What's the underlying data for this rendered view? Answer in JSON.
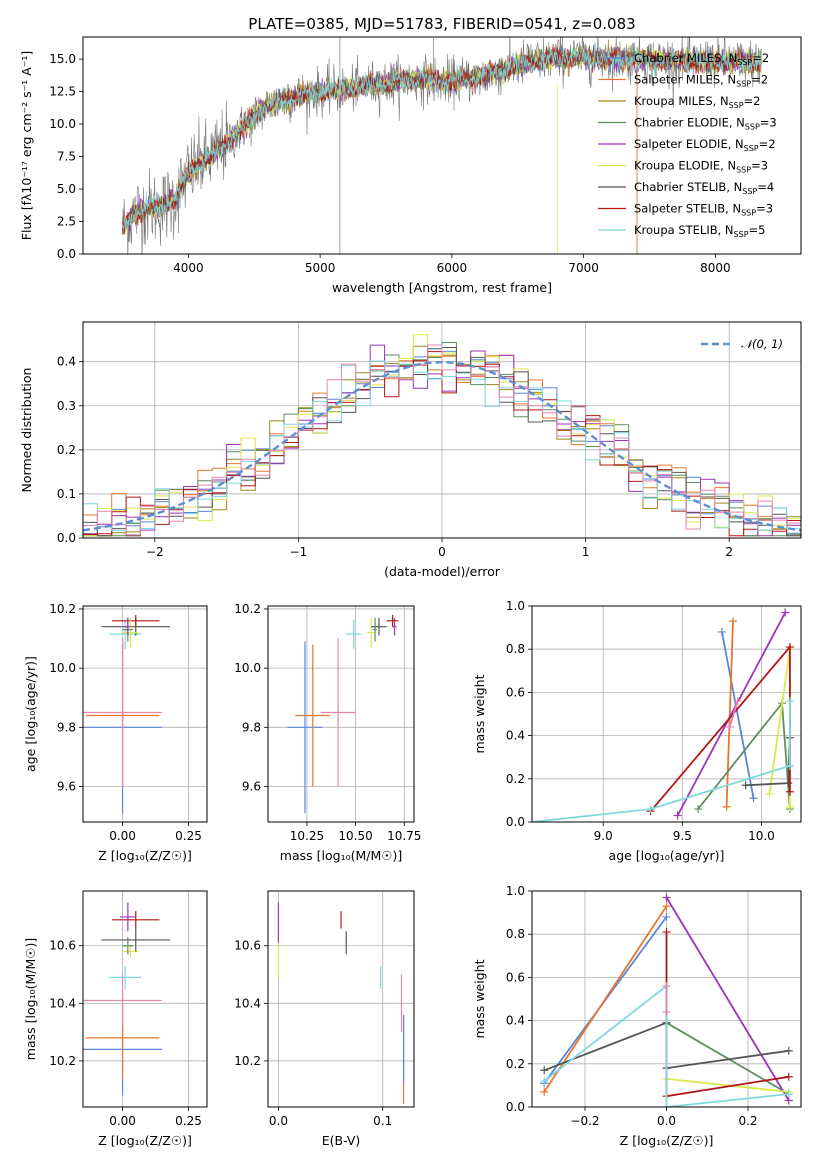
{
  "colors": {
    "Chabrier MILES": "#5b86d6",
    "Salpeter MILES": "#e8772e",
    "Kroupa MILES": "#9c8a1a",
    "Chabrier ELODIE": "#5f8c5f",
    "Salpeter ELODIE": "#9a35b8",
    "Kroupa ELODIE": "#dde84a",
    "Chabrier STELIB": "#555555",
    "Salpeter STELIB": "#b01818",
    "Kroupa STELIB": "#7fd8dc",
    "pink": "#e585b0",
    "gauss": "#5b8fd6"
  },
  "chart_data": [
    {
      "id": "spectrum",
      "type": "line",
      "title": "PLATE=0385, MJD=51783, FIBERID=0541, z=0.083",
      "xlabel": "wavelength [Angstrom, rest frame]",
      "ylabel": "Flux [fλ10⁻¹⁷ erg cm⁻² s⁻¹ A⁻¹]",
      "xlim": [
        3200,
        8650
      ],
      "ylim": [
        0,
        16.7
      ],
      "xticks": [
        "4000",
        "5000",
        "6000",
        "7000",
        "8000"
      ],
      "yticks": [
        "0.0",
        "2.5",
        "5.0",
        "7.5",
        "10.0",
        "12.5",
        "15.0"
      ],
      "legend_loc": "right",
      "legend": [
        {
          "name": "Chabrier MILES",
          "nssp": "2"
        },
        {
          "name": "Salpeter MILES",
          "nssp": "2"
        },
        {
          "name": "Kroupa MILES",
          "nssp": "2"
        },
        {
          "name": "Chabrier ELODIE",
          "nssp": "3"
        },
        {
          "name": "Salpeter ELODIE",
          "nssp": "2"
        },
        {
          "name": "Kroupa ELODIE",
          "nssp": "3"
        },
        {
          "name": "Chabrier STELIB",
          "nssp": "4"
        },
        {
          "name": "Salpeter STELIB",
          "nssp": "3"
        },
        {
          "name": "Kroupa STELIB",
          "nssp": "5"
        }
      ],
      "continuum": [
        [
          3500,
          2.0
        ],
        [
          3600,
          3.2
        ],
        [
          3700,
          3.6
        ],
        [
          3800,
          3.6
        ],
        [
          3900,
          4.2
        ],
        [
          4000,
          6.3
        ],
        [
          4100,
          7.0
        ],
        [
          4200,
          7.7
        ],
        [
          4300,
          8.6
        ],
        [
          4400,
          9.6
        ],
        [
          4500,
          10.6
        ],
        [
          4600,
          11.4
        ],
        [
          4700,
          11.8
        ],
        [
          4800,
          12.1
        ],
        [
          4900,
          12.3
        ],
        [
          5000,
          12.5
        ],
        [
          5200,
          12.7
        ],
        [
          5400,
          13.0
        ],
        [
          5600,
          13.3
        ],
        [
          5800,
          13.4
        ],
        [
          6000,
          13.3
        ],
        [
          6200,
          13.6
        ],
        [
          6400,
          14.2
        ],
        [
          6600,
          14.8
        ],
        [
          6800,
          15.1
        ],
        [
          7000,
          15.1
        ],
        [
          7200,
          15.0
        ],
        [
          7400,
          15.0
        ],
        [
          7600,
          14.9
        ],
        [
          8000,
          14.8
        ],
        [
          8350,
          14.7
        ]
      ]
    },
    {
      "id": "residuals",
      "type": "step",
      "xlabel": "(data-model)/error",
      "ylabel": "Normed distribution",
      "xlim": [
        -2.5,
        2.5
      ],
      "ylim": [
        0,
        0.49
      ],
      "xticks": [
        "−2",
        "−1",
        "0",
        "1",
        "2"
      ],
      "yticks": [
        "0.0",
        "0.1",
        "0.2",
        "0.3",
        "0.4"
      ],
      "grid": true,
      "legend_loc": "top-right",
      "legend": [
        {
          "name": "𝒩(0, 1)"
        }
      ],
      "bin_width": 0.1
    },
    {
      "id": "age-vs-Z",
      "type": "errorbar",
      "xlabel": "Z [log₁₀(Z/Z☉)]",
      "ylabel": "age  [log₁₀(age/yr)]",
      "xlim": [
        -0.15,
        0.32
      ],
      "ylim": [
        9.48,
        10.21
      ],
      "xticks": [
        "0.00",
        "0.25"
      ],
      "yticks": [
        "9.6",
        "9.8",
        "10.0",
        "10.2"
      ],
      "grid": true,
      "points": [
        {
          "c": "Chabrier MILES",
          "x": 0.0,
          "y": 9.8,
          "xe": 0.15,
          "ye": 0.29
        },
        {
          "c": "Salpeter MILES",
          "x": 0.0,
          "y": 9.84,
          "xe": 0.14,
          "ye": 0.24
        },
        {
          "c": "pink",
          "x": 0.0,
          "y": 9.85,
          "xe": 0.15,
          "ye": 0.25
        },
        {
          "c": "Kroupa STELIB",
          "x": 0.01,
          "y": 10.115,
          "xe": 0.06,
          "ye": 0.05
        },
        {
          "c": "Chabrier STELIB",
          "x": 0.05,
          "y": 10.14,
          "xe": 0.13,
          "ye": 0.03
        },
        {
          "c": "Salpeter STELIB",
          "x": 0.05,
          "y": 10.16,
          "xe": 0.09,
          "ye": 0.02
        },
        {
          "c": "Kroupa ELODIE",
          "x": 0.03,
          "y": 10.12,
          "xe": 0.03,
          "ye": 0.05
        },
        {
          "c": "Chabrier ELODIE",
          "x": 0.02,
          "y": 10.13,
          "xe": 0.02,
          "ye": 0.04
        },
        {
          "c": "Salpeter ELODIE",
          "x": 0.02,
          "y": 10.14,
          "xe": 0.01,
          "ye": 0.03
        }
      ]
    },
    {
      "id": "age-vs-mass",
      "type": "errorbar",
      "xlabel": "mass [log₁₀(M/M☉)]",
      "xlim": [
        10.05,
        10.8
      ],
      "ylim": [
        9.48,
        10.21
      ],
      "xticks": [
        "10.25",
        "10.50",
        "10.75"
      ],
      "yticks": [
        "9.6",
        "9.8",
        "10.0",
        "10.2"
      ],
      "grid": true,
      "points": [
        {
          "c": "Chabrier MILES",
          "x": 10.24,
          "y": 9.8,
          "xe": 0.09,
          "ye": 0.29
        },
        {
          "c": "Salpeter MILES",
          "x": 10.28,
          "y": 9.84,
          "xe": 0.09,
          "ye": 0.24
        },
        {
          "c": "pink",
          "x": 10.41,
          "y": 9.85,
          "xe": 0.09,
          "ye": 0.25
        },
        {
          "c": "Kroupa STELIB",
          "x": 10.49,
          "y": 10.115,
          "xe": 0.04,
          "ye": 0.05
        },
        {
          "c": "Kroupa ELODIE",
          "x": 10.58,
          "y": 10.12,
          "xe": 0.02,
          "ye": 0.05
        },
        {
          "c": "Chabrier STELIB",
          "x": 10.62,
          "y": 10.14,
          "xe": 0.04,
          "ye": 0.03
        },
        {
          "c": "Chabrier ELODIE",
          "x": 10.6,
          "y": 10.13,
          "xe": 0.01,
          "ye": 0.04
        },
        {
          "c": "Salpeter ELODIE",
          "x": 10.7,
          "y": 10.14,
          "xe": 0.01,
          "ye": 0.03
        },
        {
          "c": "Salpeter STELIB",
          "x": 10.69,
          "y": 10.16,
          "xe": 0.03,
          "ye": 0.02
        }
      ]
    },
    {
      "id": "weight-vs-age",
      "type": "line",
      "xlabel": "age  [log₁₀(age/yr)]",
      "ylabel": "mass weight",
      "xlim": [
        8.55,
        10.25
      ],
      "ylim": [
        0,
        1.0
      ],
      "xticks": [
        "9.0",
        "9.5",
        "10.0"
      ],
      "yticks": [
        "0.0",
        "0.2",
        "0.4",
        "0.6",
        "0.8",
        "1.0"
      ],
      "grid": true,
      "series": [
        {
          "c": "Chabrier MILES",
          "pts": [
            [
              9.75,
              0.88
            ],
            [
              9.95,
              0.11
            ]
          ]
        },
        {
          "c": "Salpeter MILES",
          "pts": [
            [
              9.82,
              0.93
            ],
            [
              9.78,
              0.07
            ]
          ]
        },
        {
          "c": "Chabrier ELODIE",
          "pts": [
            [
              9.6,
              0.06
            ],
            [
              10.13,
              0.55
            ],
            [
              10.18,
              0.06
            ]
          ]
        },
        {
          "c": "Salpeter ELODIE",
          "pts": [
            [
              9.47,
              0.03
            ],
            [
              10.15,
              0.97
            ]
          ]
        },
        {
          "c": "Kroupa ELODIE",
          "pts": [
            [
              10.05,
              0.13
            ],
            [
              10.18,
              0.8
            ],
            [
              10.18,
              0.07
            ]
          ]
        },
        {
          "c": "Chabrier STELIB",
          "pts": [
            [
              9.9,
              0.17
            ],
            [
              10.17,
              0.18
            ],
            [
              10.18,
              0.39
            ],
            [
              10.18,
              0.26
            ]
          ]
        },
        {
          "c": "Salpeter STELIB",
          "pts": [
            [
              9.3,
              0.05
            ],
            [
              10.18,
              0.81
            ],
            [
              10.18,
              0.14
            ]
          ]
        },
        {
          "c": "Kroupa STELIB",
          "pts": [
            [
              8.55,
              0.0
            ],
            [
              9.3,
              0.06
            ],
            [
              10.18,
              0.26
            ],
            [
              10.18,
              0.56
            ]
          ]
        },
        {
          "c": "pink",
          "pts": [
            [
              9.85,
              0.56
            ],
            [
              9.8,
              0.44
            ]
          ]
        }
      ]
    },
    {
      "id": "mass-vs-Z",
      "type": "errorbar",
      "xlabel": "Z [log₁₀(Z/Z☉)]",
      "ylabel": "mass [log₁₀(M/M☉)]",
      "xlim": [
        -0.15,
        0.32
      ],
      "ylim": [
        10.04,
        10.79
      ],
      "xticks": [
        "0.00",
        "0.25"
      ],
      "yticks": [
        "10.2",
        "10.4",
        "10.6"
      ],
      "grid": true,
      "points": [
        {
          "c": "Chabrier MILES",
          "x": 0.0,
          "y": 10.24,
          "xe": 0.15,
          "ye": 0.16
        },
        {
          "c": "Salpeter MILES",
          "x": 0.0,
          "y": 10.28,
          "xe": 0.14,
          "ye": 0.14
        },
        {
          "c": "pink",
          "x": 0.0,
          "y": 10.41,
          "xe": 0.15,
          "ye": 0.09
        },
        {
          "c": "Kroupa STELIB",
          "x": 0.01,
          "y": 10.49,
          "xe": 0.06,
          "ye": 0.04
        },
        {
          "c": "Kroupa ELODIE",
          "x": 0.03,
          "y": 10.58,
          "xe": 0.03,
          "ye": 0.02
        },
        {
          "c": "Chabrier ELODIE",
          "x": 0.02,
          "y": 10.6,
          "xe": 0.02,
          "ye": 0.03
        },
        {
          "c": "Chabrier STELIB",
          "x": 0.05,
          "y": 10.62,
          "xe": 0.13,
          "ye": 0.04
        },
        {
          "c": "Salpeter STELIB",
          "x": 0.05,
          "y": 10.69,
          "xe": 0.09,
          "ye": 0.03
        },
        {
          "c": "Salpeter ELODIE",
          "x": 0.02,
          "y": 10.7,
          "xe": 0.03,
          "ye": 0.05
        }
      ]
    },
    {
      "id": "mass-vs-ebv",
      "type": "errorbar",
      "xlabel": "E(B-V)",
      "xlim": [
        -0.01,
        0.13
      ],
      "ylim": [
        10.04,
        10.79
      ],
      "xticks": [
        "0.0",
        "0.1"
      ],
      "yticks": [
        "10.2",
        "10.4",
        "10.6"
      ],
      "grid": true,
      "points": [
        {
          "c": "Salpeter ELODIE",
          "x": 0.0,
          "y": 10.68,
          "xe": 0,
          "ye": 0.07
        },
        {
          "c": "Kroupa ELODIE",
          "x": 0.0,
          "y": 10.55,
          "xe": 0,
          "ye": 0.06
        },
        {
          "c": "Salpeter STELIB",
          "x": 0.06,
          "y": 10.69,
          "xe": 0,
          "ye": 0.03
        },
        {
          "c": "Chabrier STELIB",
          "x": 0.065,
          "y": 10.61,
          "xe": 0,
          "ye": 0.04
        },
        {
          "c": "Kroupa STELIB",
          "x": 0.098,
          "y": 10.49,
          "xe": 0,
          "ye": 0.04
        },
        {
          "c": "pink",
          "x": 0.118,
          "y": 10.4,
          "xe": 0,
          "ye": 0.1
        },
        {
          "c": "Salpeter MILES",
          "x": 0.12,
          "y": 10.2,
          "xe": 0,
          "ye": 0.15
        },
        {
          "c": "Chabrier MILES",
          "x": 0.12,
          "y": 10.24,
          "xe": 0,
          "ye": 0.12
        }
      ]
    },
    {
      "id": "weight-vs-Z",
      "type": "line",
      "xlabel": "Z [log₁₀(Z/Z☉)]",
      "ylabel": "mass weight",
      "xlim": [
        -0.33,
        0.33
      ],
      "ylim": [
        0,
        1.0
      ],
      "xticks": [
        "−0.2",
        "0.0",
        "0.2"
      ],
      "yticks": [
        "0.0",
        "0.2",
        "0.4",
        "0.6",
        "0.8",
        "1.0"
      ],
      "grid": true,
      "series": [
        {
          "c": "Chabrier MILES",
          "pts": [
            [
              -0.3,
              0.11
            ],
            [
              0.0,
              0.88
            ]
          ]
        },
        {
          "c": "Salpeter MILES",
          "pts": [
            [
              -0.3,
              0.07
            ],
            [
              0.0,
              0.93
            ]
          ]
        },
        {
          "c": "Chabrier ELODIE",
          "pts": [
            [
              0.0,
              0.39
            ],
            [
              0.3,
              0.06
            ]
          ]
        },
        {
          "c": "Salpeter ELODIE",
          "pts": [
            [
              0.0,
              0.97
            ],
            [
              0.3,
              0.03
            ]
          ]
        },
        {
          "c": "Kroupa ELODIE",
          "pts": [
            [
              0.0,
              0.13
            ],
            [
              0.3,
              0.07
            ]
          ]
        },
        {
          "c": "Chabrier STELIB",
          "pts": [
            [
              -0.3,
              0.17
            ],
            [
              0.0,
              0.39
            ],
            [
              0.0,
              0.18
            ],
            [
              0.3,
              0.26
            ]
          ]
        },
        {
          "c": "Salpeter STELIB",
          "pts": [
            [
              0.0,
              0.81
            ],
            [
              0.0,
              0.05
            ],
            [
              0.3,
              0.14
            ]
          ]
        },
        {
          "c": "Kroupa STELIB",
          "pts": [
            [
              -0.3,
              0.12
            ],
            [
              0.0,
              0.56
            ],
            [
              0.0,
              0.0
            ],
            [
              0.3,
              0.06
            ]
          ]
        },
        {
          "c": "pink",
          "pts": [
            [
              0.0,
              0.56
            ],
            [
              0.0,
              0.44
            ]
          ]
        }
      ]
    }
  ]
}
